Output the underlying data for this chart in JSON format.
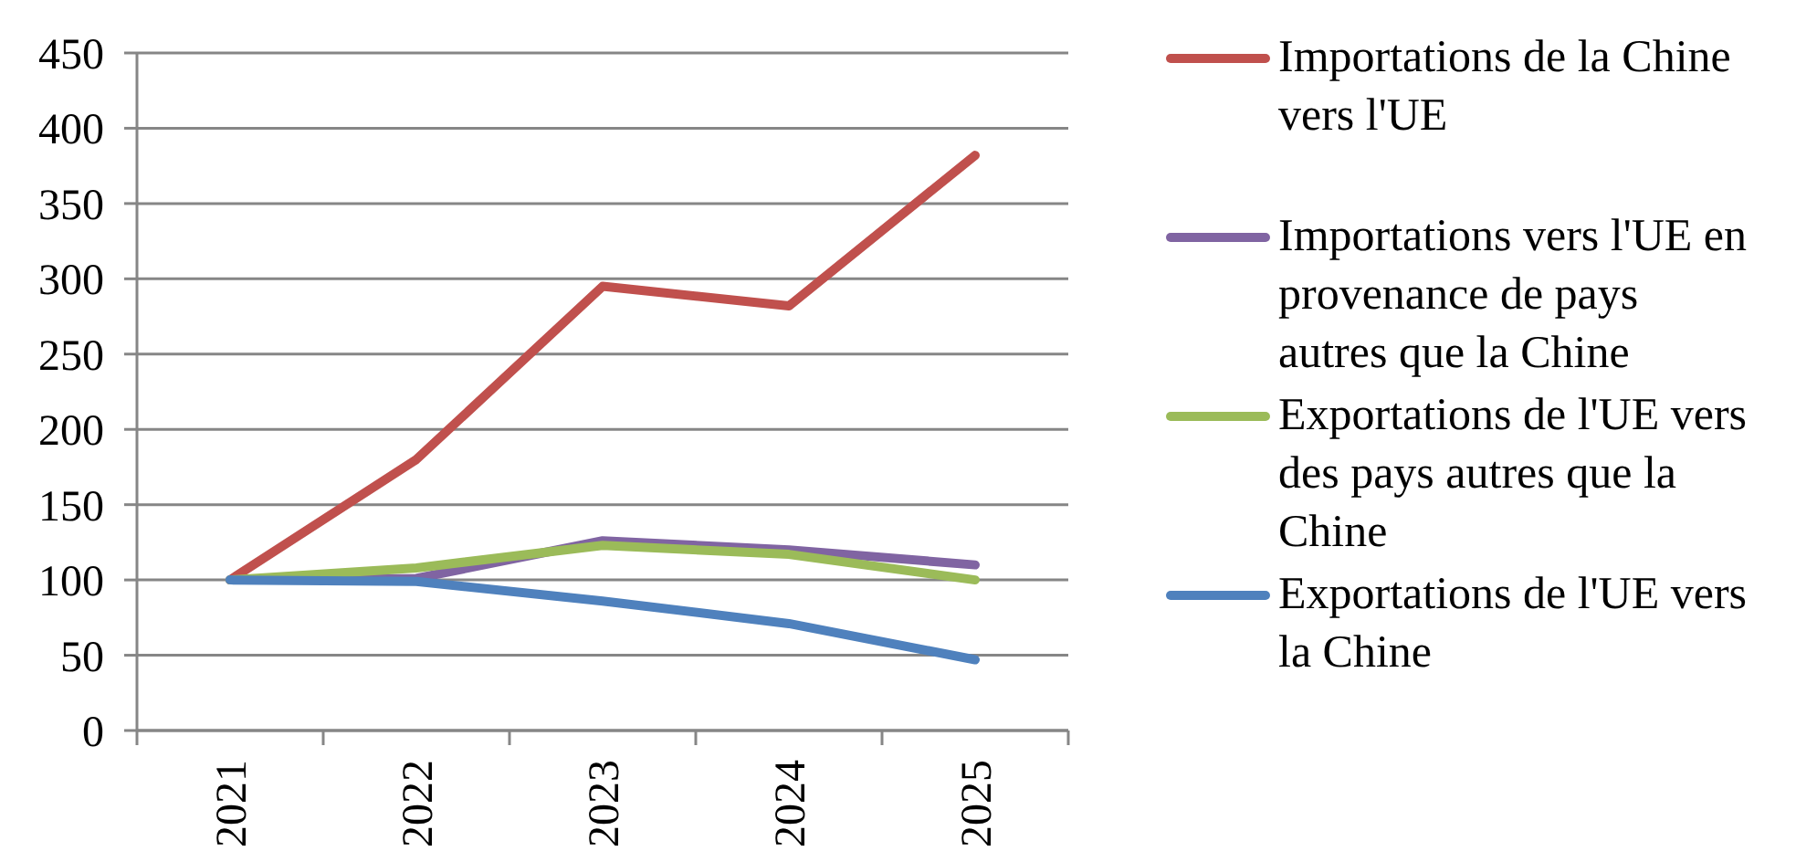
{
  "chart_data": {
    "type": "line",
    "categories": [
      "2021",
      "2022",
      "2023",
      "2024",
      "2025"
    ],
    "series": [
      {
        "name": "Importations de la Chine vers l'UE",
        "color": "#c0504d",
        "values": [
          100,
          180,
          295,
          282,
          382
        ]
      },
      {
        "name": "Importations vers l'UE en provenance de pays autres que la Chine",
        "color": "#8064a2",
        "values": [
          100,
          101,
          126,
          120,
          110
        ]
      },
      {
        "name": "Exportations de l'UE vers des pays autres que la Chine",
        "color": "#9bbb59",
        "values": [
          100,
          108,
          123,
          117,
          100
        ]
      },
      {
        "name": "Exportations de l'UE vers la Chine",
        "color": "#4f81bd",
        "values": [
          100,
          99,
          86,
          71,
          47
        ]
      }
    ],
    "ylim": [
      0,
      450
    ],
    "yticks": [
      0,
      50,
      100,
      150,
      200,
      250,
      300,
      350,
      400,
      450
    ],
    "grid": "y",
    "legend": "right",
    "marker": "none",
    "line_style": "solid"
  }
}
